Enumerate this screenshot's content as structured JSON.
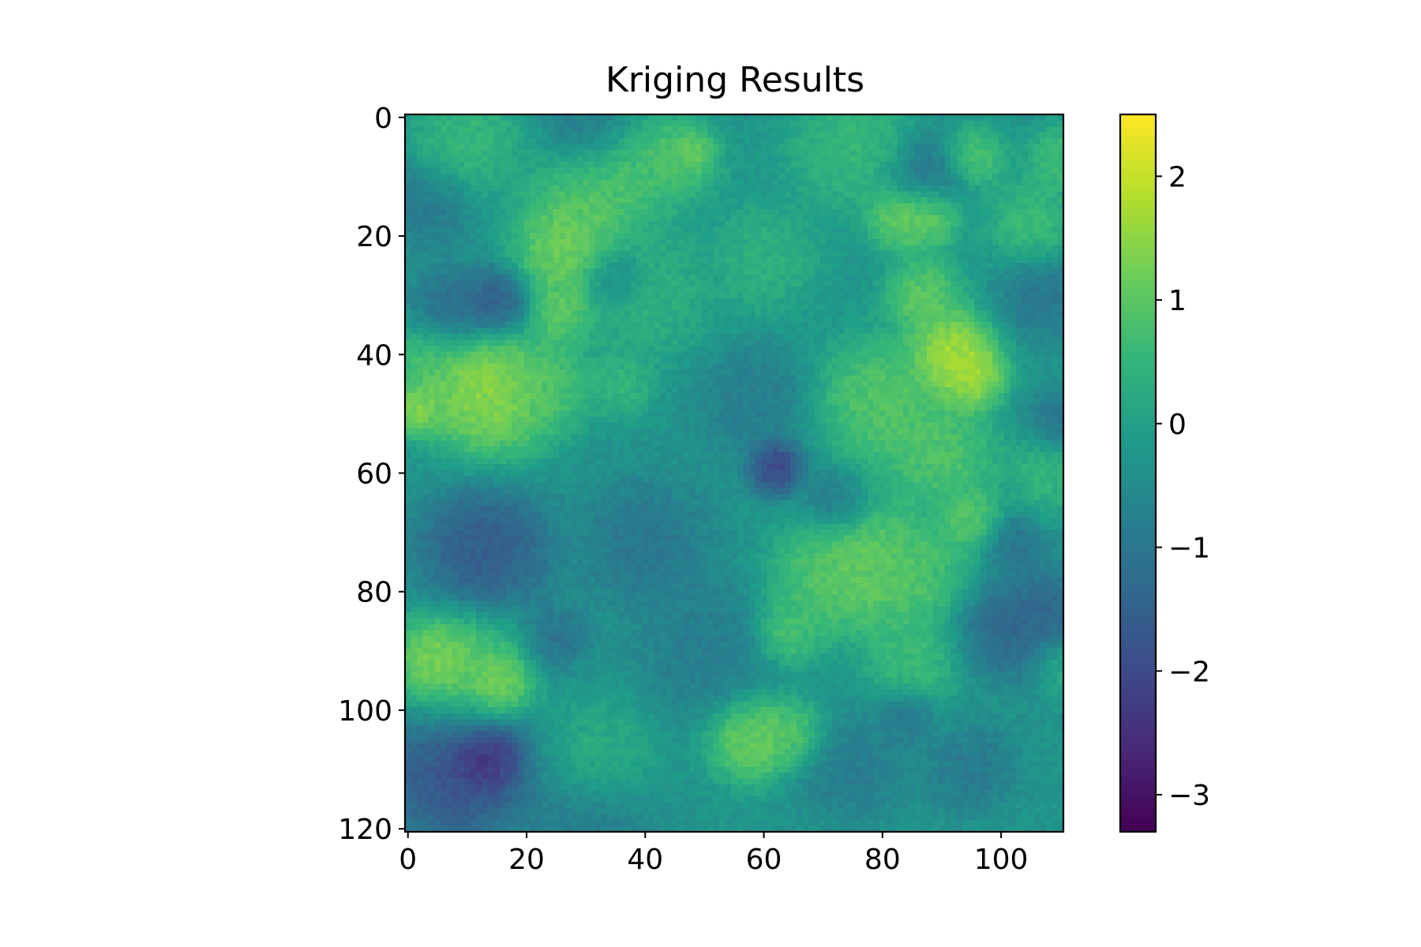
{
  "chart_data": {
    "type": "heatmap",
    "title": "Kriging Results",
    "xlabel": "",
    "ylabel": "",
    "colormap": "viridis",
    "x_range": [
      0,
      111
    ],
    "y_range": [
      0,
      121
    ],
    "y_axis_inverted": true,
    "grid": false,
    "x_ticks": [
      {
        "value": 0,
        "label": "0"
      },
      {
        "value": 20,
        "label": "20"
      },
      {
        "value": 40,
        "label": "40"
      },
      {
        "value": 60,
        "label": "60"
      },
      {
        "value": 80,
        "label": "80"
      },
      {
        "value": 100,
        "label": "100"
      }
    ],
    "y_ticks": [
      {
        "value": 0,
        "label": "0"
      },
      {
        "value": 20,
        "label": "20"
      },
      {
        "value": 40,
        "label": "40"
      },
      {
        "value": 60,
        "label": "60"
      },
      {
        "value": 80,
        "label": "80"
      },
      {
        "value": 100,
        "label": "100"
      },
      {
        "value": 120,
        "label": "120"
      }
    ],
    "colorbar": {
      "range": [
        -3.3,
        2.5
      ],
      "ticks": [
        {
          "value": 2,
          "label": "2"
        },
        {
          "value": 1,
          "label": "1"
        },
        {
          "value": 0,
          "label": "0"
        },
        {
          "value": -1,
          "label": "−1"
        },
        {
          "value": -2,
          "label": "−2"
        },
        {
          "value": -3,
          "label": "−3"
        }
      ]
    },
    "background_level": -0.3,
    "features": [
      {
        "x": 92,
        "y": 40,
        "value": 2.3,
        "spread": 4
      },
      {
        "x": 95,
        "y": 44,
        "value": 2.0,
        "spread": 3
      },
      {
        "x": 14,
        "y": 47,
        "value": 1.9,
        "spread": 6
      },
      {
        "x": 11,
        "y": 44,
        "value": 1.6,
        "spread": 4
      },
      {
        "x": 1,
        "y": 49,
        "value": 1.9,
        "spread": 2.5
      },
      {
        "x": 27,
        "y": 22,
        "value": 1.7,
        "spread": 5
      },
      {
        "x": 26,
        "y": 33,
        "value": 1.4,
        "spread": 3
      },
      {
        "x": 33,
        "y": 11,
        "value": 1.2,
        "spread": 6
      },
      {
        "x": 45,
        "y": 7,
        "value": 1.1,
        "spread": 4
      },
      {
        "x": 48,
        "y": 6,
        "value": 1.5,
        "spread": 2
      },
      {
        "x": 5,
        "y": 92,
        "value": 1.9,
        "spread": 4
      },
      {
        "x": 15,
        "y": 96,
        "value": 1.9,
        "spread": 3
      },
      {
        "x": 10,
        "y": 94,
        "value": 1.2,
        "spread": 6
      },
      {
        "x": 58,
        "y": 105,
        "value": 1.6,
        "spread": 4
      },
      {
        "x": 65,
        "y": 104,
        "value": 1.2,
        "spread": 3
      },
      {
        "x": 78,
        "y": 76,
        "value": 1.5,
        "spread": 6
      },
      {
        "x": 70,
        "y": 78,
        "value": 1.1,
        "spread": 5
      },
      {
        "x": 86,
        "y": 77,
        "value": 1.0,
        "spread": 5
      },
      {
        "x": 88,
        "y": 16,
        "value": 1.8,
        "spread": 3
      },
      {
        "x": 83,
        "y": 17,
        "value": 1.5,
        "spread": 3
      },
      {
        "x": 87,
        "y": 30,
        "value": 1.4,
        "spread": 3.5
      },
      {
        "x": 95,
        "y": 7,
        "value": 1.3,
        "spread": 3
      },
      {
        "x": 80,
        "y": 48,
        "value": 1.3,
        "spread": 6
      },
      {
        "x": 90,
        "y": 57,
        "value": 1.2,
        "spread": 5
      },
      {
        "x": 95,
        "y": 68,
        "value": 1.3,
        "spread": 3
      },
      {
        "x": 64,
        "y": 87,
        "value": 1.1,
        "spread": 3
      },
      {
        "x": 3,
        "y": 42,
        "value": 1.0,
        "spread": 4
      },
      {
        "x": 24,
        "y": 45,
        "value": 1.0,
        "spread": 4
      },
      {
        "x": 110,
        "y": 7,
        "value": 1.0,
        "spread": 3
      },
      {
        "x": 105,
        "y": 18,
        "value": 0.9,
        "spread": 4
      },
      {
        "x": 10,
        "y": 4,
        "value": 0.8,
        "spread": 5
      },
      {
        "x": 75,
        "y": 5,
        "value": 0.8,
        "spread": 6
      },
      {
        "x": 108,
        "y": 60,
        "value": 0.7,
        "spread": 4
      },
      {
        "x": 40,
        "y": 30,
        "value": 0.6,
        "spread": 6
      },
      {
        "x": 60,
        "y": 24,
        "value": 0.6,
        "spread": 5
      },
      {
        "x": 36,
        "y": 45,
        "value": 0.7,
        "spread": 3
      },
      {
        "x": 85,
        "y": 92,
        "value": 0.9,
        "spread": 4
      },
      {
        "x": 110,
        "y": 92,
        "value": 0.8,
        "spread": 3
      },
      {
        "x": 32,
        "y": 108,
        "value": 0.5,
        "spread": 5
      },
      {
        "x": 13,
        "y": 108,
        "value": -3.2,
        "spread": 3.5
      },
      {
        "x": 8,
        "y": 110,
        "value": -2.2,
        "spread": 7
      },
      {
        "x": 13,
        "y": 73,
        "value": -2.0,
        "spread": 6
      },
      {
        "x": 62,
        "y": 59,
        "value": -2.6,
        "spread": 2.5
      },
      {
        "x": 15,
        "y": 31,
        "value": -1.9,
        "spread": 3
      },
      {
        "x": 8,
        "y": 33,
        "value": -1.5,
        "spread": 4
      },
      {
        "x": 107,
        "y": 86,
        "value": -1.8,
        "spread": 5
      },
      {
        "x": 100,
        "y": 86,
        "value": -1.4,
        "spread": 4
      },
      {
        "x": 88,
        "y": 10,
        "value": -1.5,
        "spread": 4
      },
      {
        "x": 107,
        "y": 30,
        "value": -1.2,
        "spread": 4
      },
      {
        "x": 110,
        "y": 52,
        "value": -1.3,
        "spread": 3
      },
      {
        "x": 30,
        "y": 2,
        "value": -1.3,
        "spread": 4
      },
      {
        "x": 40,
        "y": 72,
        "value": -1.2,
        "spread": 6
      },
      {
        "x": 50,
        "y": 90,
        "value": -1.0,
        "spread": 6
      },
      {
        "x": 75,
        "y": 110,
        "value": -1.0,
        "spread": 5
      },
      {
        "x": 95,
        "y": 110,
        "value": -1.1,
        "spread": 4
      },
      {
        "x": 58,
        "y": 48,
        "value": -1.0,
        "spread": 5
      },
      {
        "x": 25,
        "y": 88,
        "value": -1.3,
        "spread": 3
      },
      {
        "x": 3,
        "y": 15,
        "value": -1.1,
        "spread": 4
      },
      {
        "x": 35,
        "y": 27,
        "value": -1.1,
        "spread": 3
      },
      {
        "x": 72,
        "y": 65,
        "value": -1.1,
        "spread": 3
      },
      {
        "x": 102,
        "y": 72,
        "value": -1.2,
        "spread": 3
      },
      {
        "x": 84,
        "y": 101,
        "value": -1.2,
        "spread": 2.5
      },
      {
        "x": 30,
        "y": 120,
        "value": -1.0,
        "spread": 6
      }
    ]
  }
}
